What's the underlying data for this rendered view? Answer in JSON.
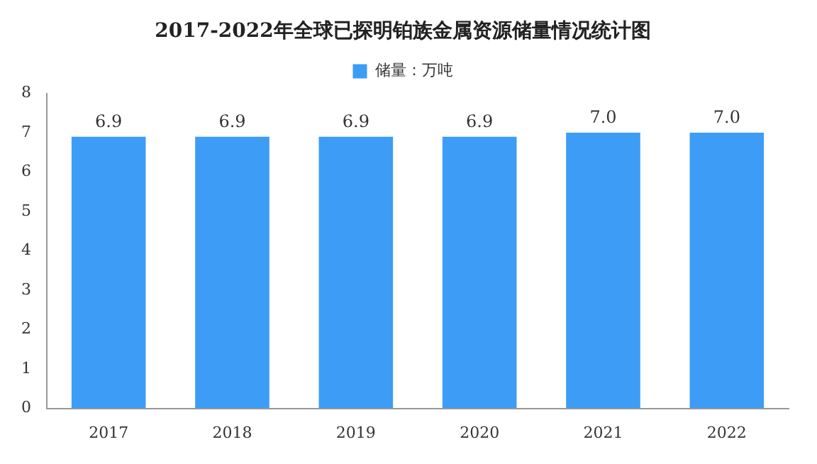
{
  "chart_data": {
    "type": "bar",
    "title": "2017-2022年全球已探明铂族金属资源储量情况统计图",
    "categories": [
      "2017",
      "2018",
      "2019",
      "2020",
      "2021",
      "2022"
    ],
    "series": [
      {
        "name": "储量：万吨",
        "color": "#3d9cf5",
        "values": [
          6.9,
          6.9,
          6.9,
          6.9,
          7.0,
          7.0
        ],
        "value_labels": [
          "6.9",
          "6.9",
          "6.9",
          "6.9",
          "7.0",
          "7.0"
        ]
      }
    ],
    "ylim": [
      0,
      8
    ],
    "yticks": [
      0,
      1,
      2,
      3,
      4,
      5,
      6,
      7,
      8
    ],
    "grid": false,
    "legend": "top"
  }
}
